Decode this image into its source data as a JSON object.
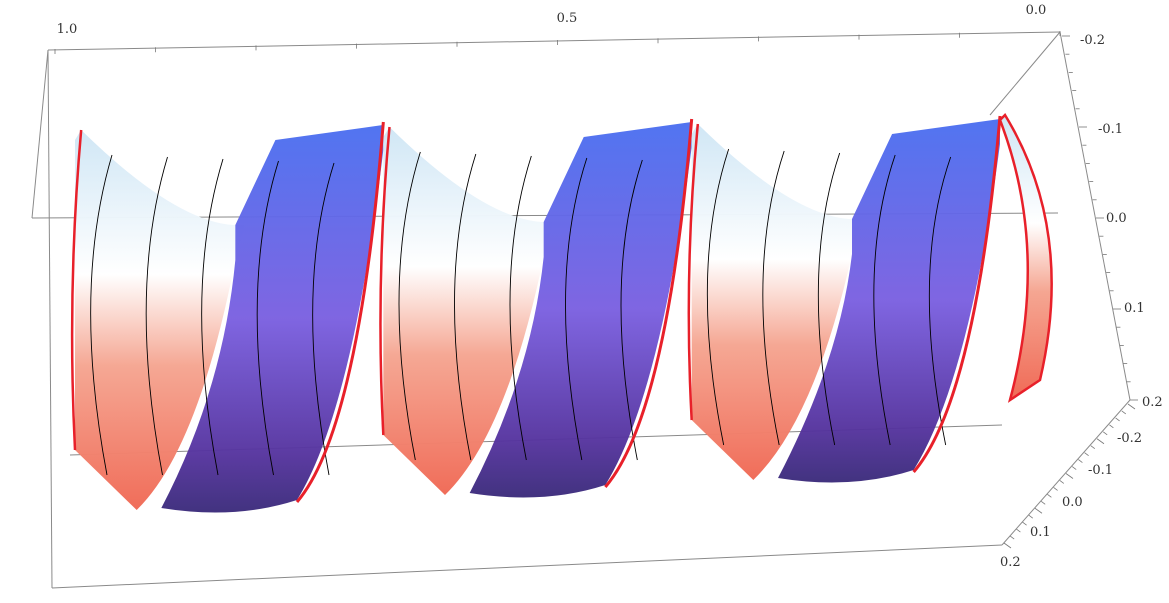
{
  "chart_data": {
    "type": "surface3d",
    "title": "",
    "axes": {
      "top": {
        "ticks": [
          "1.0",
          "0.5",
          "0.0"
        ],
        "range": [
          1.0,
          0.0
        ]
      },
      "right_vertical": {
        "ticks": [
          "-0.2",
          "-0.1",
          "0.0",
          "0.1",
          "0.2"
        ],
        "range": [
          -0.2,
          0.2
        ]
      },
      "right_depth": {
        "ticks": [
          "-0.2",
          "-0.1",
          "0.0",
          "0.1",
          "0.2"
        ],
        "range": [
          -0.2,
          0.2
        ]
      }
    },
    "surface": {
      "shape": "twisted helical tube (ribbon wrapped around axis)",
      "turns": 3,
      "colormap": [
        "#4a3aa0",
        "#6b6fe6",
        "#ffffff",
        "#f59a8a",
        "#e9453a"
      ],
      "edge_color": "#e8202a",
      "mesh_color": "#000000"
    },
    "grid": false,
    "box": true
  }
}
